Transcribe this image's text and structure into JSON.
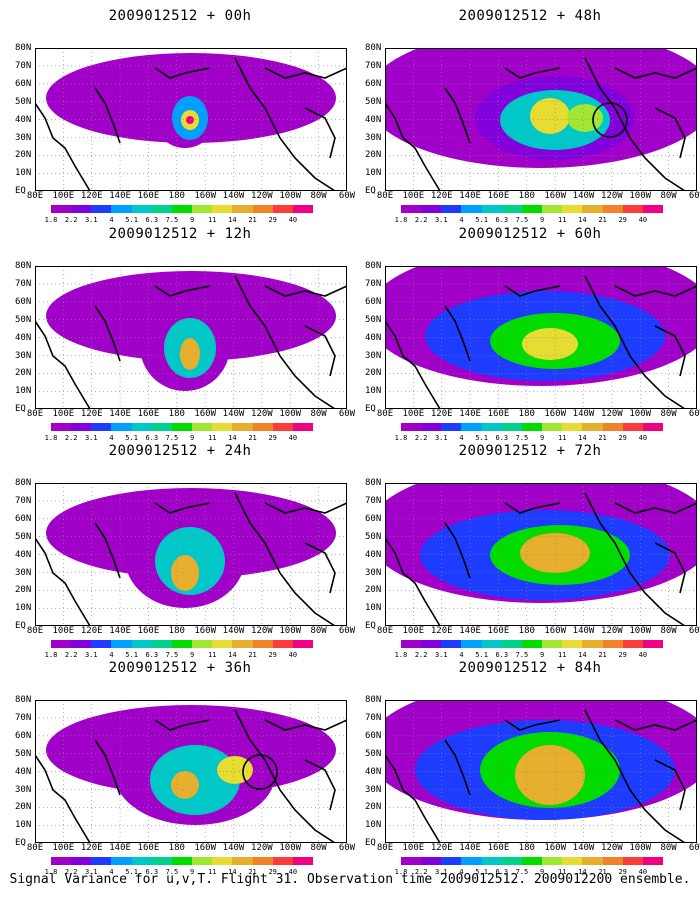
{
  "panels": [
    {
      "title": "2009012512 + 00h",
      "circle": false
    },
    {
      "title": "2009012512 + 48h",
      "circle": true
    },
    {
      "title": "2009012512 + 12h",
      "circle": false
    },
    {
      "title": "2009012512 + 60h",
      "circle": false
    },
    {
      "title": "2009012512 + 24h",
      "circle": false
    },
    {
      "title": "2009012512 + 72h",
      "circle": false
    },
    {
      "title": "2009012512 + 36h",
      "circle": true
    },
    {
      "title": "2009012512 + 84h",
      "circle": false
    }
  ],
  "x_ticks": [
    "80E",
    "100E",
    "120E",
    "140E",
    "160E",
    "180",
    "160W",
    "140W",
    "120W",
    "100W",
    "80W",
    "60W"
  ],
  "y_ticks": [
    "80N",
    "70N",
    "60N",
    "50N",
    "40N",
    "30N",
    "20N",
    "10N",
    "EQ"
  ],
  "colorbar_labels": [
    "1.8",
    "2.2",
    "3.1",
    "4",
    "5.1",
    "6.3",
    "7.5",
    "9",
    "11",
    "14",
    "21",
    "29",
    "40"
  ],
  "colorbar_colors": [
    "#a000c8",
    "#8200dc",
    "#1e3cff",
    "#00a0ff",
    "#00c8c8",
    "#00d28c",
    "#00dc00",
    "#a0e632",
    "#e6dc32",
    "#e6af2d",
    "#f08228",
    "#fa3c3c",
    "#f00082"
  ],
  "footer": "Signal Variance for u,v,T. Flight 31. Observation time 2009012512. 2009012200 ensemble."
}
